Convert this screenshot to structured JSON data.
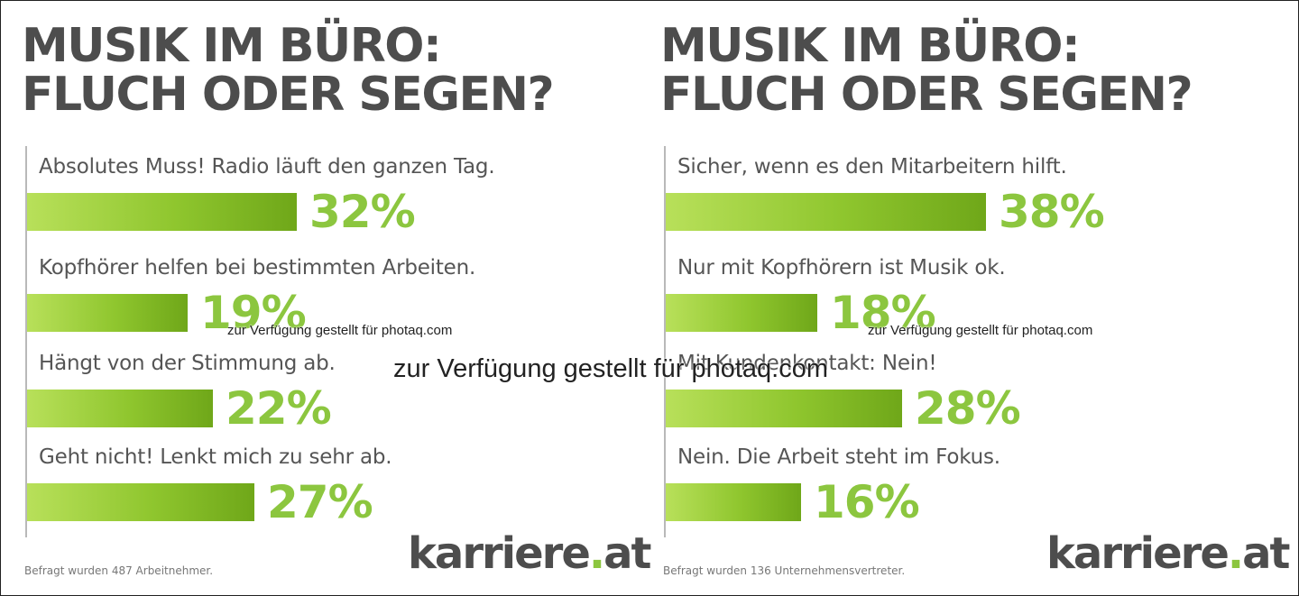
{
  "chart_data": [
    {
      "type": "bar",
      "orientation": "horizontal",
      "title": [
        "MUSIK IM BÜRO:",
        "FLUCH ODER SEGEN?"
      ],
      "categories": [
        "Absolutes Muss! Radio läuft den ganzen Tag.",
        "Kopfhörer helfen bei bestimmten Arbeiten.",
        "Hängt von der Stimmung ab.",
        "Geht nicht! Lenkt mich zu sehr ab."
      ],
      "values": [
        32,
        19,
        22,
        27
      ],
      "value_labels": [
        "32%",
        "19%",
        "22%",
        "27%"
      ],
      "xlim": [
        0,
        100
      ],
      "unit": "%",
      "footnote": "Befragt wurden 487 Arbeitnehmer.",
      "grid": false,
      "legend": "none"
    },
    {
      "type": "bar",
      "orientation": "horizontal",
      "title": [
        "MUSIK IM BÜRO:",
        "FLUCH ODER SEGEN?"
      ],
      "categories": [
        "Sicher, wenn es den Mitarbeitern hilft.",
        "Nur mit Kopfhörern ist Musik ok.",
        "Mit Kundenkontakt: Nein!",
        "Nein. Die Arbeit steht im Fokus."
      ],
      "values": [
        38,
        18,
        28,
        16
      ],
      "value_labels": [
        "38%",
        "18%",
        "28%",
        "16%"
      ],
      "xlim": [
        0,
        100
      ],
      "unit": "%",
      "footnote": "Befragt wurden 136 Unternehmensvertreter.",
      "grid": false,
      "legend": "none"
    }
  ],
  "brand": {
    "name_main": "karriere",
    "name_dot": ".",
    "name_tld": "at"
  },
  "watermark": {
    "small": "zur Verfügung gestellt für photaq.com",
    "big": "zur Verfügung gestellt für photaq.com"
  },
  "colors": {
    "title": "#4d4d4d",
    "accent_green": "#8cc63f",
    "bar_light": "#b8e05a",
    "bar_dark": "#6fa719",
    "label": "#555555",
    "axis": "#b9b9b9"
  }
}
